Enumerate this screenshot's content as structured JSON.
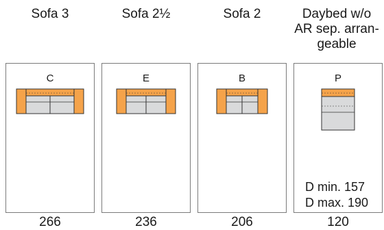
{
  "columns": [
    {
      "title": "Sofa 3",
      "code": "C",
      "width": "266",
      "icon": "three-seat-sofa-icon"
    },
    {
      "title": "Sofa 2½",
      "code": "E",
      "width": "236",
      "icon": "two-and-half-seat-sofa-icon"
    },
    {
      "title": "Sofa 2",
      "code": "B",
      "width": "206",
      "icon": "two-seat-sofa-icon"
    },
    {
      "title": "Daybed w/o\nAR sep. arran-\ngeable",
      "code": "P",
      "width": "120",
      "icon": "daybed-icon",
      "depth_min": "D min. 157",
      "depth_max": "D max. 190"
    }
  ],
  "colors": {
    "armrest": "#f5a34a",
    "backrest": "#f5a34a",
    "seat": "#d9dadb",
    "outline": "#333333"
  }
}
